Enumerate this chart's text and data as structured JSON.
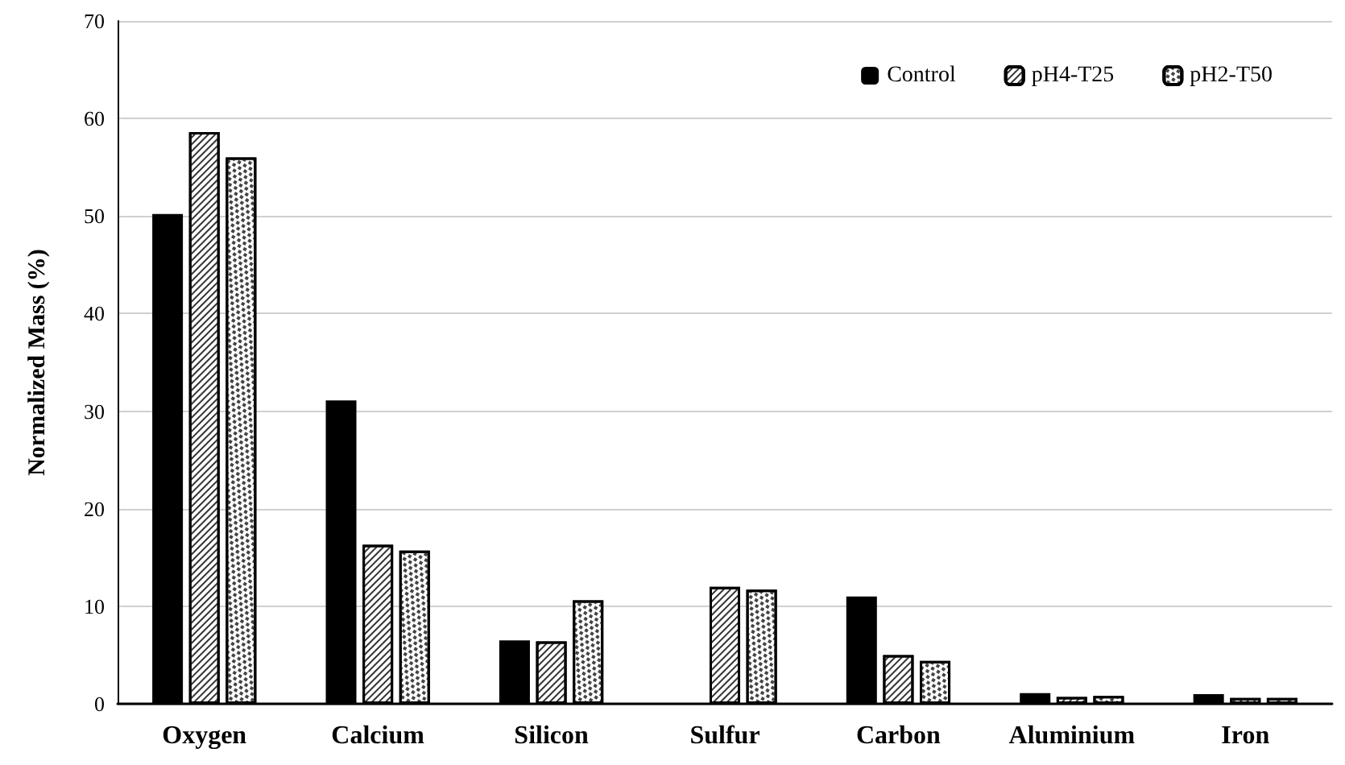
{
  "chart_data": {
    "type": "bar",
    "ylabel": "Normalized Mass (%)",
    "categories": [
      "Oxygen",
      "Calcium",
      "Silicon",
      "Sulfur",
      "Carbon",
      "Aluminium",
      "Iron"
    ],
    "series": [
      {
        "name": "Control",
        "color": "#000000",
        "values": [
          50.2,
          31.1,
          6.5,
          0,
          11.0,
          1.1,
          1.0
        ]
      },
      {
        "name": "pH4-T25",
        "color": "#ffffff",
        "values": [
          58.6,
          16.3,
          6.4,
          12.0,
          5.0,
          0.7,
          0.6
        ]
      },
      {
        "name": "pH2-T50",
        "color": "#ffffff",
        "values": [
          56.0,
          15.7,
          10.6,
          11.7,
          4.4,
          0.8,
          0.6
        ]
      }
    ],
    "ylim": [
      0,
      70
    ],
    "yticks": [
      0,
      10,
      20,
      30,
      40,
      50,
      60,
      70
    ],
    "grid": "y",
    "legend": "top right"
  }
}
